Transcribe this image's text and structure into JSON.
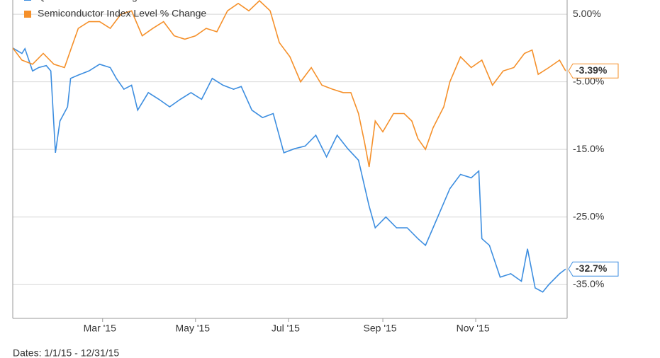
{
  "chart_data": {
    "type": "line",
    "xlim": [
      0,
      364
    ],
    "ylim": [
      -40,
      7.1
    ],
    "xticks": [
      {
        "value": 59,
        "label": "Mar '15"
      },
      {
        "value": 120,
        "label": "May '15"
      },
      {
        "value": 181,
        "label": "Jul '15"
      },
      {
        "value": 243,
        "label": "Sep '15"
      },
      {
        "value": 304,
        "label": "Nov '15"
      }
    ],
    "yticks": [
      {
        "value": 5,
        "label": "5.00%"
      },
      {
        "value": -5,
        "label": "-5.00%"
      },
      {
        "value": -15,
        "label": "-15.0%"
      },
      {
        "value": -25,
        "label": "-25.0%"
      },
      {
        "value": -35,
        "label": "-35.0%"
      }
    ],
    "grid": true,
    "footer": "Dates: 1/1/15 - 12/31/15",
    "series": [
      {
        "name": "QCOM Price % Change",
        "color": "#3d8ee0",
        "x": [
          0,
          6,
          8,
          13,
          17,
          22,
          25,
          28,
          31,
          36,
          38,
          43,
          50,
          57,
          64,
          68,
          73,
          78,
          82,
          89,
          96,
          103,
          110,
          117,
          124,
          131,
          138,
          145,
          150,
          157,
          164,
          171,
          178,
          185,
          192,
          199,
          206,
          213,
          220,
          227,
          234,
          238,
          245,
          252,
          259,
          266,
          271,
          276,
          280,
          287,
          294,
          301,
          306,
          308,
          313,
          320,
          327,
          334,
          338,
          343,
          348,
          352,
          359,
          363
        ],
        "values": [
          0,
          -0.8,
          -0.1,
          -3.4,
          -2.9,
          -2.6,
          -3.4,
          -15.5,
          -10.8,
          -8.7,
          -4.5,
          -4.0,
          -3.4,
          -2.4,
          -2.9,
          -4.5,
          -6.1,
          -5.5,
          -9.2,
          -6.6,
          -7.6,
          -8.7,
          -7.6,
          -6.6,
          -7.6,
          -4.5,
          -5.5,
          -6.1,
          -5.7,
          -9.2,
          -10.3,
          -9.7,
          -15.5,
          -14.9,
          -14.5,
          -12.9,
          -16.1,
          -12.9,
          -14.9,
          -16.6,
          -23.4,
          -26.6,
          -25.0,
          -26.6,
          -26.6,
          -28.2,
          -29.2,
          -26.6,
          -24.5,
          -20.8,
          -18.7,
          -19.2,
          -18.2,
          -28.2,
          -29.2,
          -33.9,
          -33.4,
          -34.5,
          -29.7,
          -35.5,
          -36.1,
          -35.0,
          -33.4,
          -32.7
        ],
        "last_label": {
          "value": -32.7,
          "label": "-32.7%"
        }
      },
      {
        "name": "Semiconductor Index Level % Change",
        "color": "#f5902a",
        "x": [
          0,
          6,
          13,
          20,
          27,
          34,
          38,
          43,
          50,
          57,
          64,
          71,
          78,
          85,
          92,
          99,
          106,
          113,
          120,
          127,
          134,
          141,
          148,
          155,
          162,
          169,
          175,
          182,
          189,
          196,
          203,
          210,
          217,
          222,
          227,
          231,
          234,
          238,
          243,
          250,
          257,
          262,
          266,
          271,
          276,
          283,
          287,
          294,
          301,
          308,
          315,
          322,
          329,
          336,
          341,
          345,
          352,
          359,
          363
        ],
        "values": [
          0,
          -1.8,
          -2.4,
          -0.8,
          -2.4,
          -2.9,
          -0.3,
          2.9,
          3.9,
          3.9,
          2.9,
          5.0,
          5.5,
          1.8,
          2.9,
          3.9,
          1.8,
          1.3,
          1.8,
          2.9,
          2.4,
          5.5,
          6.6,
          5.5,
          7.0,
          5.5,
          0.8,
          -1.3,
          -5.0,
          -2.9,
          -5.5,
          -6.1,
          -6.6,
          -6.6,
          -9.7,
          -14.0,
          -17.6,
          -10.8,
          -12.4,
          -9.7,
          -9.7,
          -10.8,
          -13.4,
          -15.0,
          -11.8,
          -8.7,
          -5.0,
          -1.3,
          -2.9,
          -1.8,
          -5.5,
          -3.4,
          -2.9,
          -0.8,
          -0.3,
          -3.9,
          -2.9,
          -1.8,
          -3.39
        ],
        "last_label": {
          "value": -3.39,
          "label": "-3.39%"
        }
      }
    ]
  }
}
